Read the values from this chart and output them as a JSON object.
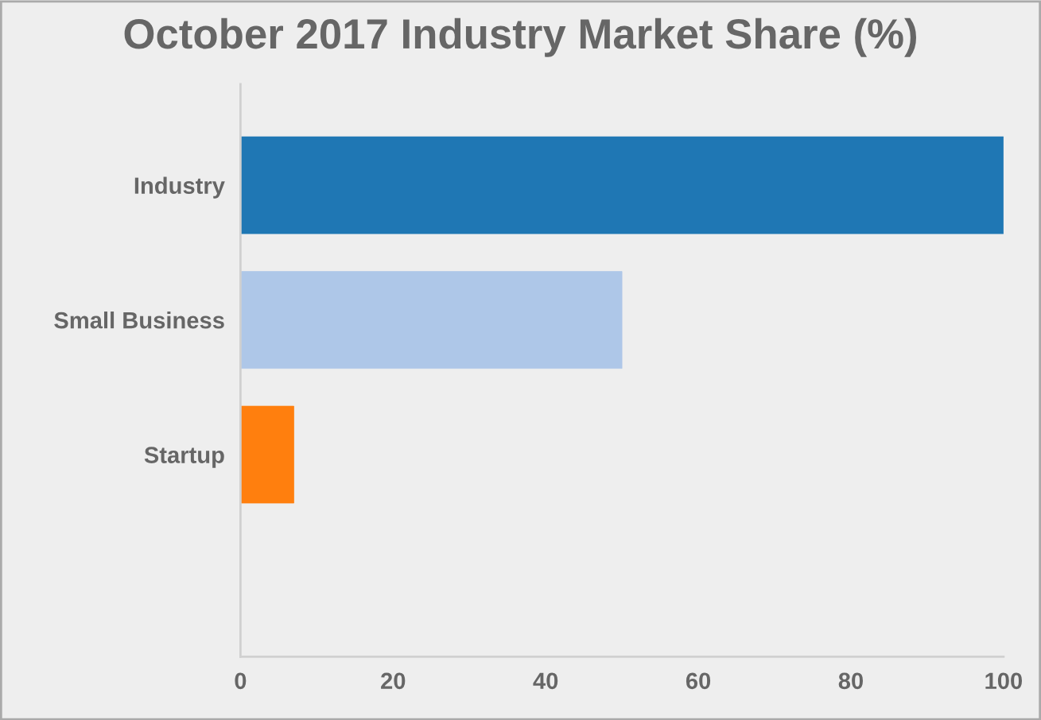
{
  "chart_data": {
    "type": "bar",
    "orientation": "horizontal",
    "title": "October 2017 Industry Market Share (%)",
    "categories": [
      "Industry",
      "Small Business",
      "Startup",
      null
    ],
    "values": [
      100,
      50,
      7,
      0
    ],
    "colors": [
      "#1f77b4",
      "#aec7e8",
      "#ff7f0e",
      "#ffbb78"
    ],
    "xlim": [
      0,
      100
    ],
    "xticks": [
      0,
      20,
      40,
      60,
      80,
      100
    ],
    "grid": false,
    "legend": false
  }
}
